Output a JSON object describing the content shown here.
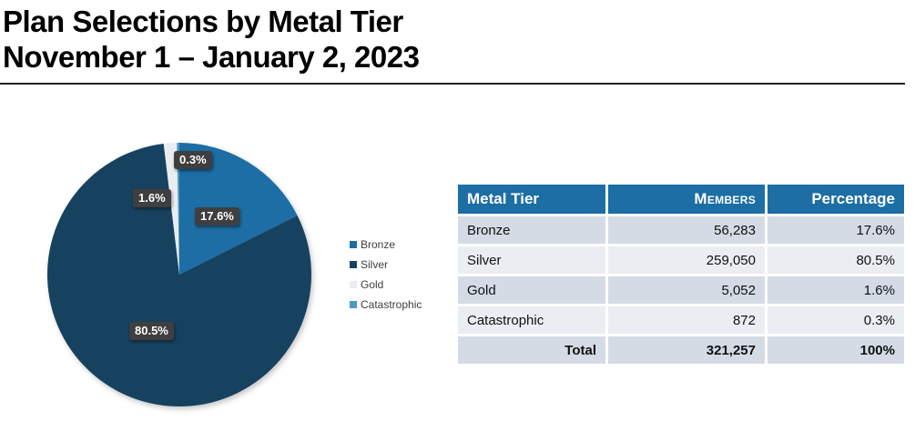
{
  "header": {
    "title_line1": "Plan Selections by Metal Tier",
    "title_line2": "November 1 – January 2, 2023"
  },
  "chart_data": {
    "type": "pie",
    "title": "Plan Selections by Metal Tier",
    "subtitle": "November 1 – January 2, 2023",
    "start_angle_deg": 0,
    "direction": "clockwise",
    "legend_position": "right",
    "slices": [
      {
        "label": "Bronze",
        "value_pct": 17.6,
        "members": 56283,
        "color": "#1C6EA4",
        "data_label": "17.6%"
      },
      {
        "label": "Silver",
        "value_pct": 80.5,
        "members": 259050,
        "color": "#16425F",
        "data_label": "80.5%"
      },
      {
        "label": "Gold",
        "value_pct": 1.6,
        "members": 5052,
        "color": "#E9EDF1",
        "data_label": "1.6%"
      },
      {
        "label": "Catastrophic",
        "value_pct": 0.3,
        "members": 872,
        "color": "#4E97C9",
        "data_label": "0.3%"
      }
    ],
    "total": {
      "members": 321257,
      "percentage": "100%"
    }
  },
  "table": {
    "headers": {
      "tier": "Metal Tier",
      "members": "Members",
      "percentage": "Percentage"
    },
    "rows": [
      {
        "tier": "Bronze",
        "members": "56,283",
        "percentage": "17.6%"
      },
      {
        "tier": "Silver",
        "members": "259,050",
        "percentage": "80.5%"
      },
      {
        "tier": "Gold",
        "members": "5,052",
        "percentage": "1.6%"
      },
      {
        "tier": "Catastrophic",
        "members": "872",
        "percentage": "0.3%"
      }
    ],
    "total_row": {
      "tier": "Total",
      "members": "321,257",
      "percentage": "100%"
    }
  },
  "colors": {
    "table_header_bg": "#1C6EA4",
    "row_alt_dark": "#D5DBE4",
    "row_alt_light": "#EAEDF2",
    "label_chip_bg": "#3F3F3F",
    "title_text": "#000000",
    "title_rule": "#222222"
  }
}
